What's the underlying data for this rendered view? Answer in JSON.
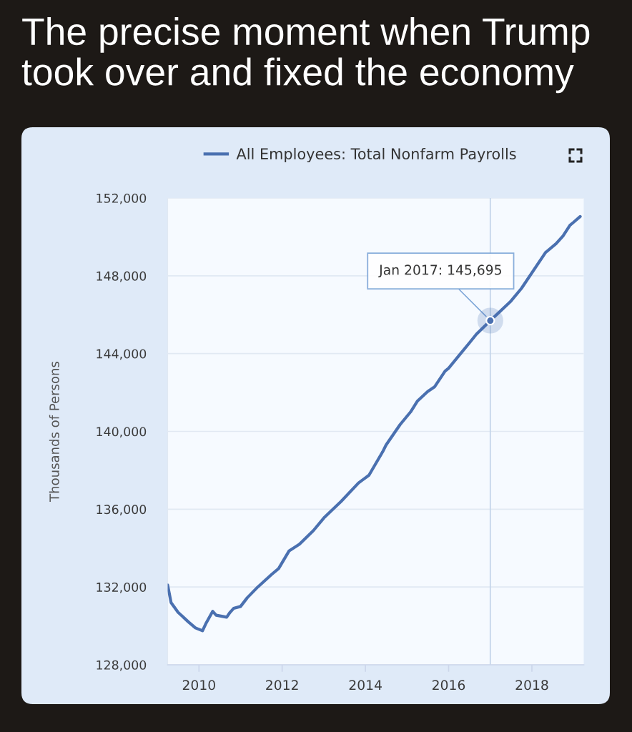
{
  "chart_data": {
    "type": "line",
    "title": "The precise moment when Trump took over and fixed the economy",
    "ylabel": "Thousands of Persons",
    "x": [
      "2009-04",
      "2009-05",
      "2009-07",
      "2009-10",
      "2009-12",
      "2010-02",
      "2010-03",
      "2010-05",
      "2010-06",
      "2010-09",
      "2010-10",
      "2010-11",
      "2011-01",
      "2011-03",
      "2011-06",
      "2011-10",
      "2011-12",
      "2012-03",
      "2012-06",
      "2012-10",
      "2013-01",
      "2013-06",
      "2013-11",
      "2014-02",
      "2014-06",
      "2014-07",
      "2014-11",
      "2015-02",
      "2015-04",
      "2015-07",
      "2015-09",
      "2015-12",
      "2016-01",
      "2016-04",
      "2016-07",
      "2016-09",
      "2017-01",
      "2017-07",
      "2017-10",
      "2018-05",
      "2018-08",
      "2018-10",
      "2018-12",
      "2019-01",
      "2019-03"
    ],
    "series": [
      {
        "name": "All Employees: Total Nonfarm Payrolls",
        "color": "#4a70b0",
        "values": [
          132100,
          131200,
          130700,
          130200,
          129900,
          129750,
          130100,
          130750,
          130550,
          130450,
          130700,
          130900,
          131000,
          131450,
          132000,
          132650,
          132950,
          133850,
          134200,
          134900,
          135550,
          136400,
          137350,
          137750,
          138950,
          139300,
          140350,
          141000,
          141550,
          142050,
          142300,
          143100,
          143250,
          143900,
          144550,
          145000,
          145695,
          146700,
          147350,
          149200,
          149650,
          150050,
          150600,
          150750,
          151050
        ]
      }
    ],
    "xlim": [
      "2009-04",
      "2019-04"
    ],
    "xticks": [
      "2010",
      "2012",
      "2014",
      "2016",
      "2018"
    ],
    "ylim": [
      128000,
      152000
    ],
    "yticks": [
      {
        "value": 128000,
        "label": "128,000"
      },
      {
        "value": 132000,
        "label": "132,000"
      },
      {
        "value": 136000,
        "label": "136,000"
      },
      {
        "value": 140000,
        "label": "140,000"
      },
      {
        "value": 144000,
        "label": "144,000"
      },
      {
        "value": 148000,
        "label": "148,000"
      },
      {
        "value": 152000,
        "label": "152,000"
      }
    ],
    "grid": "y",
    "legend": "top",
    "ref_lines": [
      {
        "axis": "x",
        "value": "2017-01",
        "color": "#c5d6ea"
      }
    ],
    "annotations": [
      {
        "text": "Jan 2017: 145,695",
        "x": "2017-01",
        "y": 145695
      }
    ]
  }
}
